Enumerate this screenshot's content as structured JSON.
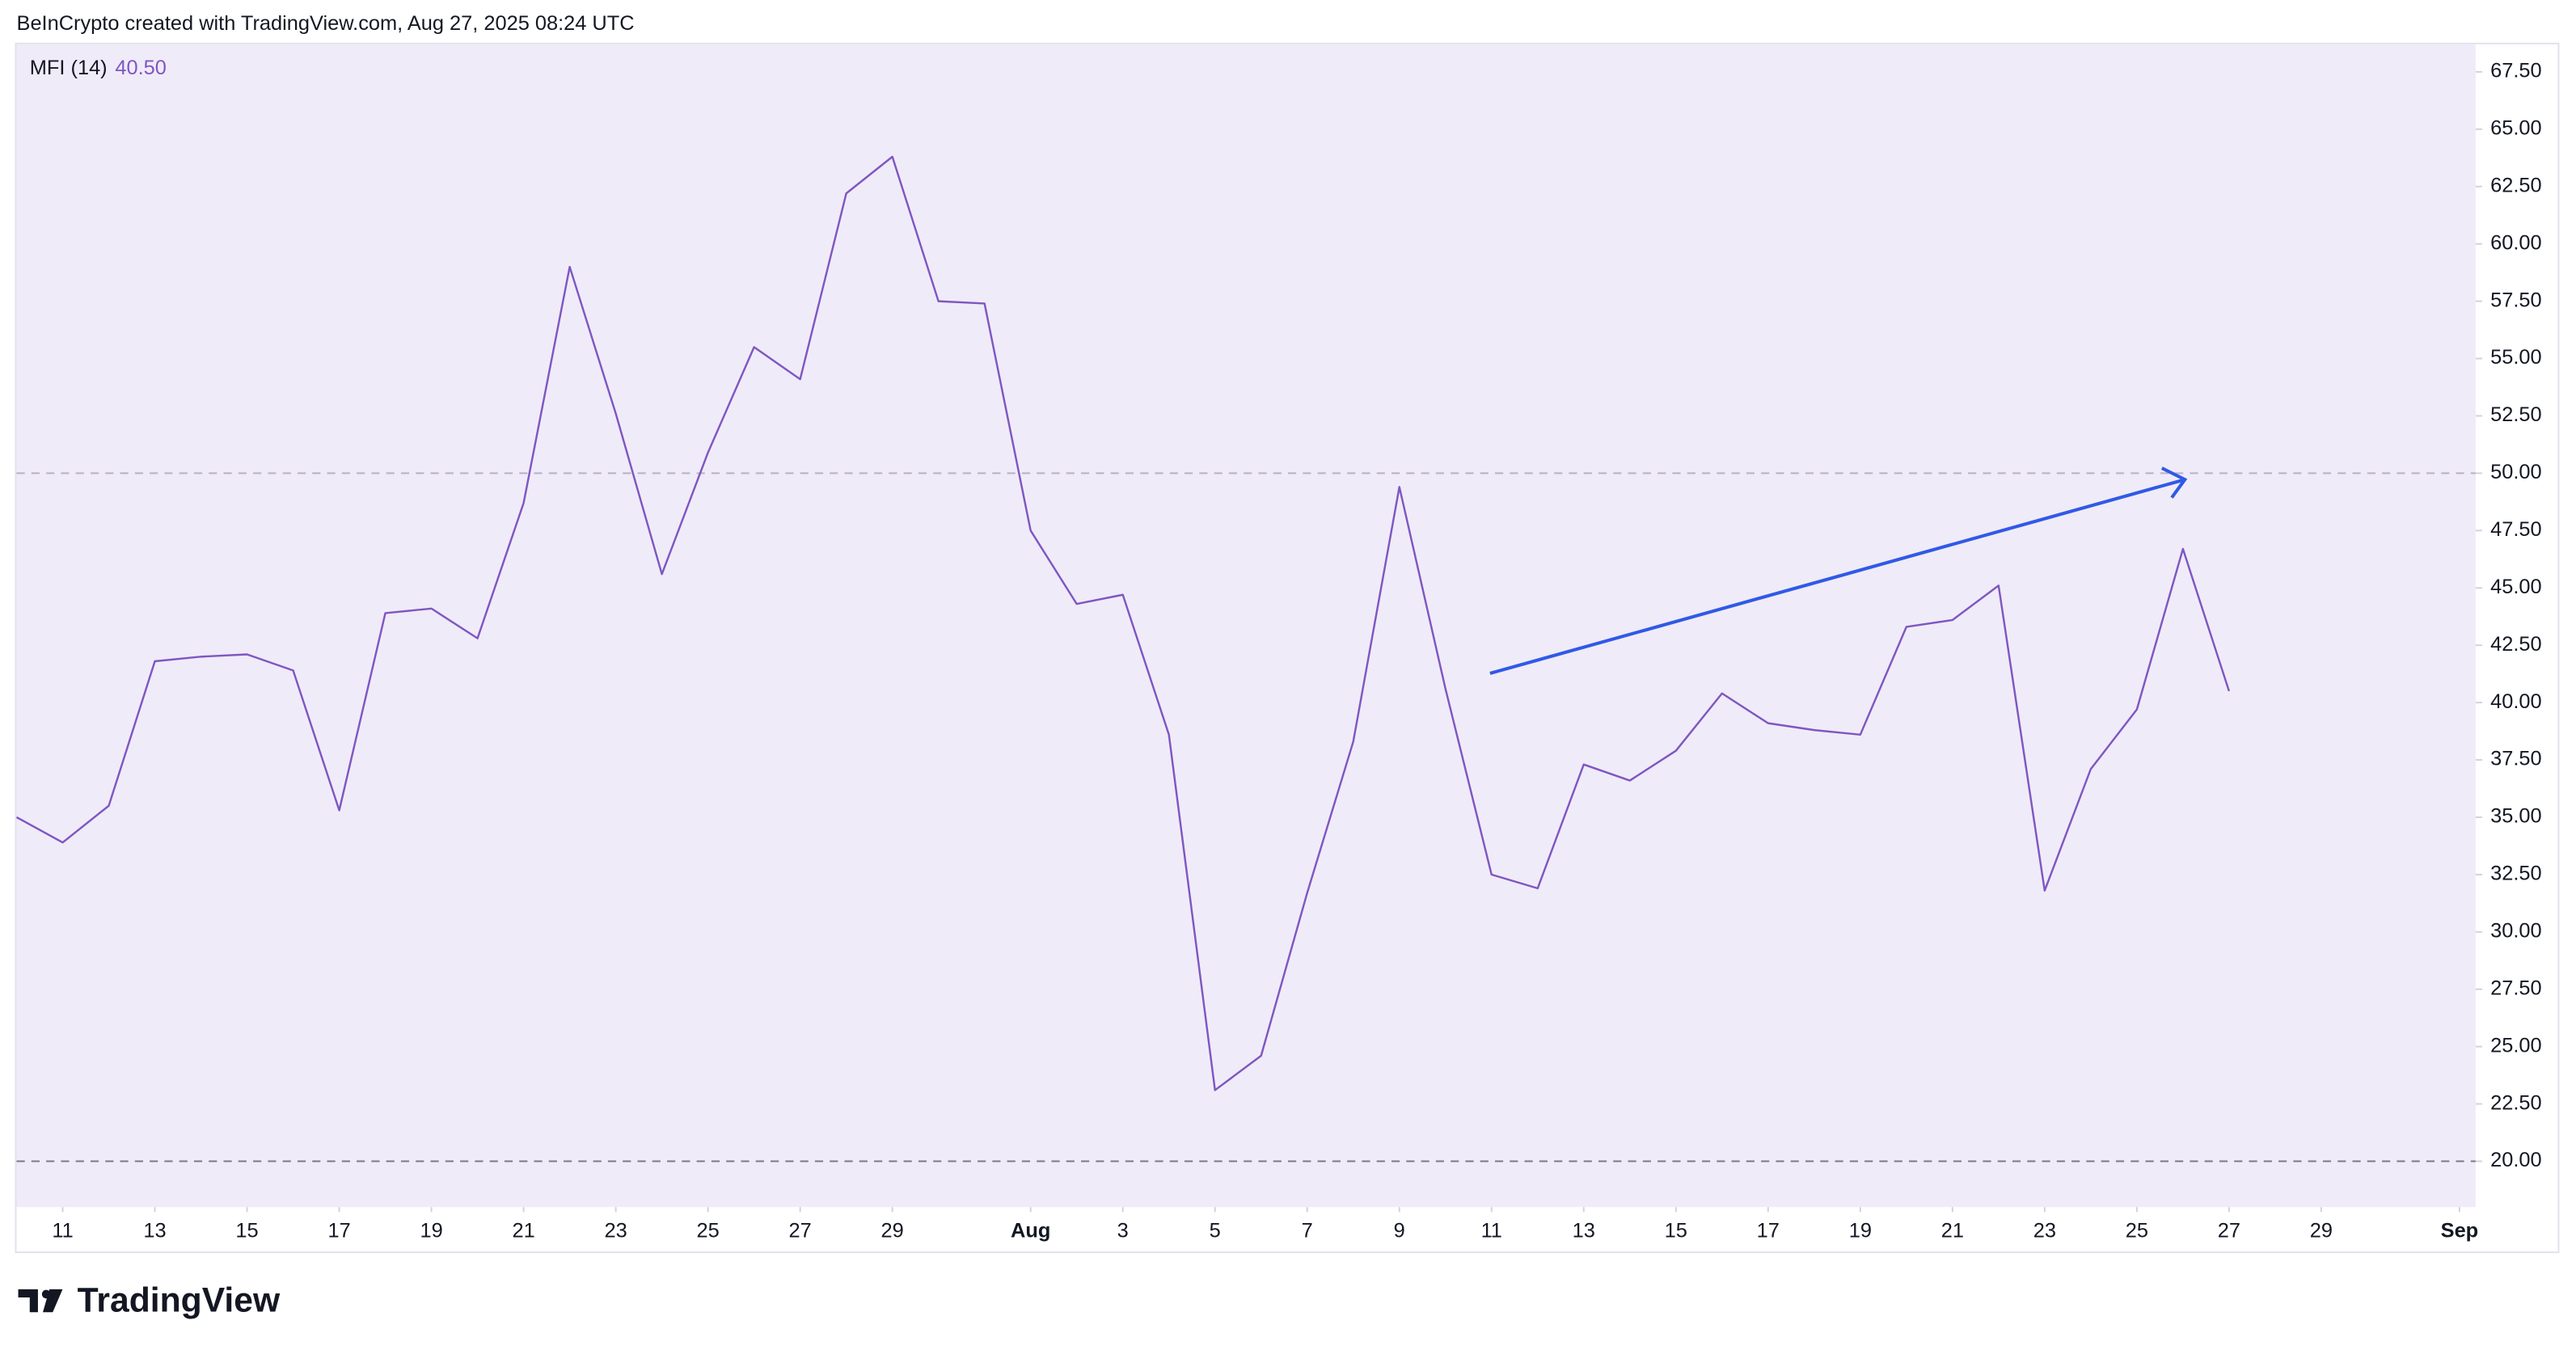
{
  "header": {
    "attribution": "BeInCrypto created with TradingView.com, Aug 27, 2025 08:24 UTC"
  },
  "footer": {
    "logo": "TradingView"
  },
  "chart_data": {
    "type": "line",
    "legend_label": "MFI (14)",
    "legend_value": "40.50",
    "categories": [
      "Jul 10",
      "Jul 11",
      "Jul 12",
      "Jul 13",
      "Jul 14",
      "Jul 15",
      "Jul 16",
      "Jul 17",
      "Jul 18",
      "Jul 19",
      "Jul 20",
      "Jul 21",
      "Jul 22",
      "Jul 23",
      "Jul 24",
      "Jul 25",
      "Jul 26",
      "Jul 27",
      "Jul 28",
      "Jul 29",
      "Jul 30",
      "Jul 31",
      "Aug 1",
      "Aug 2",
      "Aug 3",
      "Aug 4",
      "Aug 5",
      "Aug 6",
      "Aug 7",
      "Aug 8",
      "Aug 9",
      "Aug 10",
      "Aug 11",
      "Aug 12",
      "Aug 13",
      "Aug 14",
      "Aug 15",
      "Aug 16",
      "Aug 17",
      "Aug 18",
      "Aug 19",
      "Aug 20",
      "Aug 21",
      "Aug 22",
      "Aug 23",
      "Aug 24",
      "Aug 25",
      "Aug 26",
      "Aug 27"
    ],
    "series": [
      {
        "name": "MFI (14)",
        "color": "#7e57c2",
        "values": [
          35.0,
          33.9,
          35.5,
          41.8,
          42.0,
          42.1,
          41.4,
          35.3,
          43.9,
          44.1,
          42.8,
          48.7,
          59.0,
          52.6,
          45.6,
          50.9,
          55.5,
          54.1,
          62.2,
          63.8,
          57.5,
          57.4,
          47.5,
          44.3,
          44.7,
          38.6,
          23.1,
          24.6,
          31.7,
          38.3,
          49.4,
          40.6,
          32.5,
          31.9,
          37.3,
          36.6,
          37.9,
          40.4,
          39.1,
          38.8,
          38.6,
          43.3,
          43.6,
          45.1,
          31.8,
          37.1,
          39.7,
          46.7,
          40.5
        ]
      }
    ],
    "xticks": [
      {
        "value": "Jul 11",
        "label": "11"
      },
      {
        "value": "Jul 13",
        "label": "13"
      },
      {
        "value": "Jul 15",
        "label": "15"
      },
      {
        "value": "Jul 17",
        "label": "17"
      },
      {
        "value": "Jul 19",
        "label": "19"
      },
      {
        "value": "Jul 21",
        "label": "21"
      },
      {
        "value": "Jul 23",
        "label": "23"
      },
      {
        "value": "Jul 25",
        "label": "25"
      },
      {
        "value": "Jul 27",
        "label": "27"
      },
      {
        "value": "Jul 29",
        "label": "29"
      },
      {
        "value": "Aug 1",
        "label": "Aug"
      },
      {
        "value": "Aug 3",
        "label": "3"
      },
      {
        "value": "Aug 5",
        "label": "5"
      },
      {
        "value": "Aug 7",
        "label": "7"
      },
      {
        "value": "Aug 9",
        "label": "9"
      },
      {
        "value": "Aug 11",
        "label": "11"
      },
      {
        "value": "Aug 13",
        "label": "13"
      },
      {
        "value": "Aug 15",
        "label": "15"
      },
      {
        "value": "Aug 17",
        "label": "17"
      },
      {
        "value": "Aug 19",
        "label": "19"
      },
      {
        "value": "Aug 21",
        "label": "21"
      },
      {
        "value": "Aug 23",
        "label": "23"
      },
      {
        "value": "Aug 25",
        "label": "25"
      },
      {
        "value": "Aug 27",
        "label": "27"
      },
      {
        "value": "Aug 29",
        "label": "29"
      },
      {
        "value": "Sep 1",
        "label": "Sep"
      }
    ],
    "ylim": [
      18,
      68.7
    ],
    "yticks": [
      {
        "value": 20,
        "label": "20.00"
      },
      {
        "value": 22.5,
        "label": "22.50"
      },
      {
        "value": 25,
        "label": "25.00"
      },
      {
        "value": 27.5,
        "label": "27.50"
      },
      {
        "value": 30,
        "label": "30.00"
      },
      {
        "value": 32.5,
        "label": "32.50"
      },
      {
        "value": 35,
        "label": "35.00"
      },
      {
        "value": 37.5,
        "label": "37.50"
      },
      {
        "value": 40,
        "label": "40.00"
      },
      {
        "value": 42.5,
        "label": "42.50"
      },
      {
        "value": 45,
        "label": "45.00"
      },
      {
        "value": 47.5,
        "label": "47.50"
      },
      {
        "value": 50,
        "label": "50.00"
      },
      {
        "value": 52.5,
        "label": "52.50"
      },
      {
        "value": 55,
        "label": "55.00"
      },
      {
        "value": 57.5,
        "label": "57.50"
      },
      {
        "value": 60,
        "label": "60.00"
      },
      {
        "value": 62.5,
        "label": "62.50"
      },
      {
        "value": 65,
        "label": "65.00"
      },
      {
        "value": 67.5,
        "label": "67.50"
      }
    ],
    "reference_lines": [
      50,
      20
    ]
  }
}
